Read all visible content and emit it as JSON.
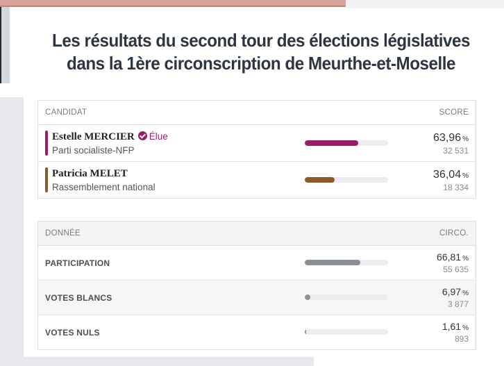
{
  "title_line1": "Les résultats du second tour des élections législatives",
  "title_line2": "dans la 1ère circonscription de Meurthe-et-Moselle",
  "candidates_table": {
    "header_left": "CANDIDAT",
    "header_right": "SCORE",
    "rows": [
      {
        "name": "Estelle MERCIER",
        "badge": "Élue",
        "party": "Parti socialiste-NFP",
        "pct": "63,96",
        "pct_unit": "%",
        "votes": "32 531",
        "share": 0.6396,
        "color": "#9b1b6b"
      },
      {
        "name": "Patricia MELET",
        "badge": "",
        "party": "Rassemblement national",
        "pct": "36,04",
        "pct_unit": "%",
        "votes": "18 334",
        "share": 0.3604,
        "color": "#8a5a2b"
      }
    ]
  },
  "data_table": {
    "header_left": "DONNÉE",
    "header_right": "CIRCO.",
    "rows": [
      {
        "label": "PARTICIPATION",
        "pct": "66,81",
        "pct_unit": "%",
        "count": "55 635",
        "share": 0.6681,
        "color": "#8a8f98"
      },
      {
        "label": "VOTES BLANCS",
        "pct": "6,97",
        "pct_unit": "%",
        "count": "3 877",
        "share": 0.0697,
        "color": "#8a8f98"
      },
      {
        "label": "VOTES NULS",
        "pct": "1,61",
        "pct_unit": "%",
        "count": "893",
        "share": 0.0161,
        "color": "#8a8f98"
      }
    ]
  }
}
